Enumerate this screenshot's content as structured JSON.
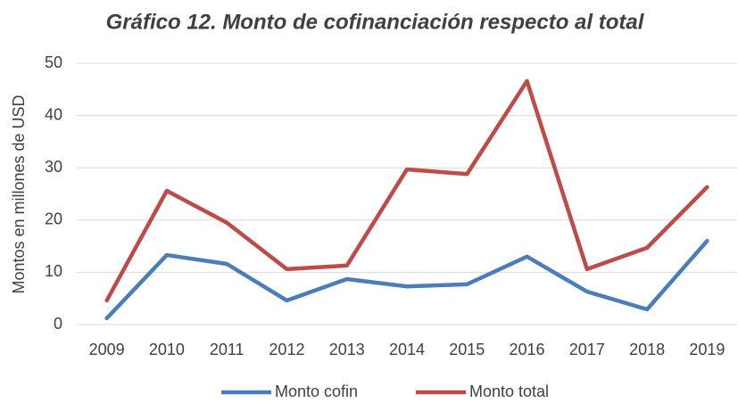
{
  "chart_data": {
    "type": "line",
    "title": "Gráfico 12. Monto de cofinanciación respecto al total",
    "y_label": "Montos en millones de USD",
    "categories": [
      "2009",
      "2010",
      "2011",
      "2012",
      "2013",
      "2014",
      "2015",
      "2016",
      "2017",
      "2018",
      "2019"
    ],
    "series": [
      {
        "name": "Monto cofin",
        "color": "#4a7ebb",
        "values": [
          1.2,
          13.3,
          11.6,
          4.6,
          8.7,
          7.3,
          7.7,
          13.0,
          6.3,
          2.9,
          16.0
        ]
      },
      {
        "name": "Monto total",
        "color": "#be4b48",
        "values": [
          4.6,
          25.6,
          19.5,
          10.6,
          11.3,
          29.7,
          28.8,
          46.6,
          10.6,
          14.7,
          26.3
        ]
      }
    ],
    "ylim": [
      0,
      50
    ],
    "yticks": [
      0,
      10,
      20,
      30,
      40,
      50
    ],
    "grid": true,
    "legend": "bottom"
  }
}
